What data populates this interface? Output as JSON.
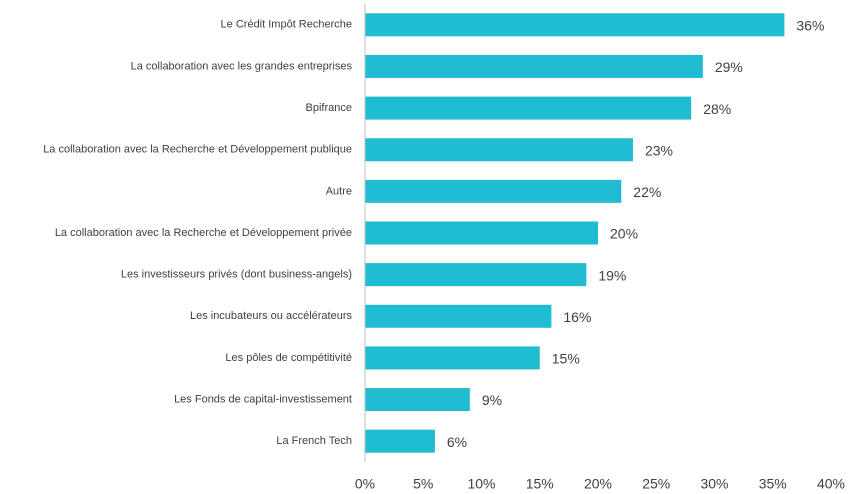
{
  "chart_data": {
    "type": "bar",
    "orientation": "horizontal",
    "categories": [
      "Le Crédit Impôt Recherche",
      "La collaboration avec les grandes entreprises",
      "Bpifrance",
      "La collaboration avec la Recherche et Développement publique",
      "Autre",
      "La collaboration avec la Recherche et Développement privée",
      "Les investisseurs privés (dont business-angels)",
      "Les incubateurs ou accélérateurs",
      "Les pôles de compétitivité",
      "Les Fonds de capital-investissement",
      "La French Tech"
    ],
    "values": [
      36,
      29,
      28,
      23,
      22,
      20,
      19,
      16,
      15,
      9,
      6
    ],
    "value_labels": [
      "36%",
      "29%",
      "28%",
      "23%",
      "22%",
      "20%",
      "19%",
      "16%",
      "15%",
      "9%",
      "6%"
    ],
    "color": "#1fbcd2",
    "xlim": [
      0,
      40
    ],
    "xticks": [
      {
        "value": 0,
        "label": "0%"
      },
      {
        "value": 5,
        "label": "5%"
      },
      {
        "value": 10,
        "label": "10%"
      },
      {
        "value": 15,
        "label": "15%"
      },
      {
        "value": 20,
        "label": "20%"
      },
      {
        "value": 25,
        "label": "25%"
      },
      {
        "value": 30,
        "label": "30%"
      },
      {
        "value": 35,
        "label": "35%"
      },
      {
        "value": 40,
        "label": "40%"
      }
    ],
    "grid": false
  }
}
